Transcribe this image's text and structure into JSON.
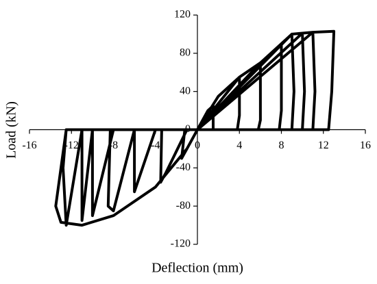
{
  "chart_data": {
    "type": "line",
    "x_label": "Deflection (mm)",
    "y_label": "Load (kN)",
    "xlim": [
      -16,
      16
    ],
    "xticks": [
      -16,
      -12,
      -8,
      -4,
      0,
      4,
      8,
      12,
      16
    ],
    "ylim": [
      -120,
      120
    ],
    "yticks": [
      -120,
      -80,
      -40,
      0,
      40,
      80,
      120
    ],
    "grid": false,
    "x": [
      0,
      1,
      1.5,
      1.5,
      0,
      -1,
      -1.5,
      -1.2,
      0,
      2,
      4,
      4,
      3.8,
      -1,
      -3,
      -3.5,
      -3.4,
      0,
      4,
      6,
      6,
      5.8,
      -4,
      -6,
      -6,
      -6,
      0,
      6,
      8,
      8,
      7.8,
      -6,
      -8,
      -8.5,
      -8.3,
      0,
      8,
      9,
      9.2,
      9,
      -8,
      -10,
      -10,
      -10,
      0,
      9,
      10,
      10.2,
      10,
      -10,
      -11,
      -11,
      -11,
      0,
      10,
      11,
      11.2,
      11,
      -11,
      -12.5,
      -12.8,
      -12.5,
      0,
      11,
      13,
      12.8,
      12.5,
      -12.5,
      -13.5,
      -13,
      -11,
      -8,
      -4,
      -1,
      0
    ],
    "series": [
      {
        "color": "#000000",
        "values": [
          0,
          20,
          25,
          0,
          0,
          -20,
          -30,
          0,
          0,
          35,
          55,
          15,
          0,
          0,
          -45,
          -55,
          0,
          0,
          55,
          70,
          10,
          0,
          0,
          -65,
          -40,
          0,
          0,
          70,
          90,
          20,
          0,
          0,
          -85,
          -80,
          0,
          0,
          90,
          100,
          40,
          0,
          0,
          -90,
          -50,
          0,
          0,
          100,
          101,
          40,
          0,
          0,
          -95,
          -40,
          0,
          0,
          101,
          102,
          40,
          0,
          0,
          -100,
          -40,
          0,
          0,
          102,
          103,
          40,
          0,
          0,
          -80,
          -97,
          -100,
          -90,
          -60,
          -20,
          0
        ]
      }
    ]
  }
}
